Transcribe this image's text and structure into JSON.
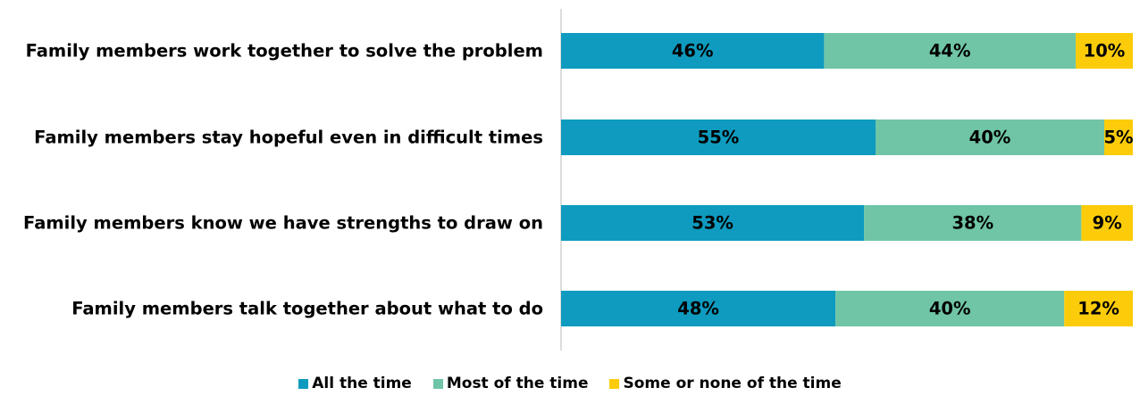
{
  "chart_data": {
    "type": "bar",
    "orientation": "horizontal",
    "stacked": true,
    "categories": [
      "Family members work together to solve the problem",
      "Family members stay hopeful even in difficult times",
      "Family members know we have strengths to draw on",
      "Family members talk together about what to do"
    ],
    "series": [
      {
        "name": "All the time",
        "color": "#0e9bbf",
        "values": [
          46,
          55,
          53,
          48
        ],
        "labels": [
          "46%",
          "55%",
          "53%",
          "48%"
        ]
      },
      {
        "name": "Most of the time",
        "color": "#6fc5a6",
        "values": [
          44,
          40,
          38,
          40
        ],
        "labels": [
          "44%",
          "40%",
          "38%",
          "40%"
        ]
      },
      {
        "name": "Some or none of the time",
        "color": "#fccc0a",
        "values": [
          10,
          5,
          9,
          12
        ],
        "labels": [
          "10%",
          "5%",
          "9%",
          "12%"
        ]
      }
    ],
    "title": "",
    "xlabel": "",
    "ylabel": "",
    "xlim": [
      0,
      100
    ],
    "grid": false,
    "legend_position": "bottom"
  }
}
